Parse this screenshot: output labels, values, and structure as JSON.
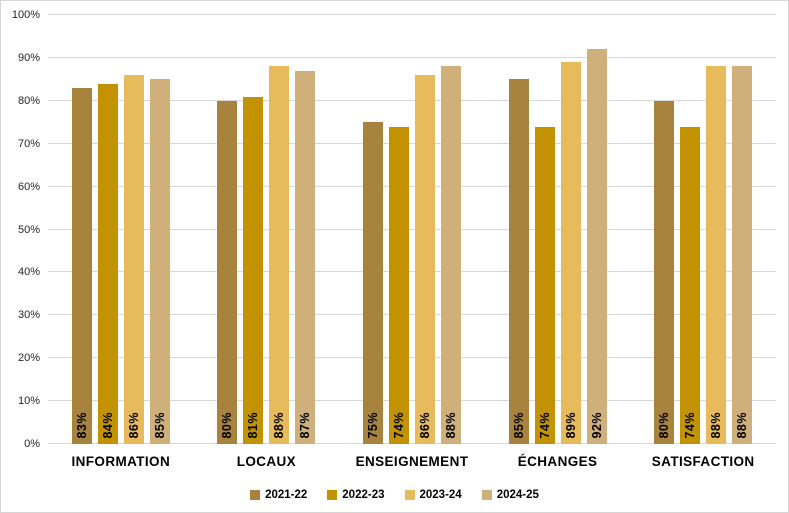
{
  "chart_data": {
    "type": "bar",
    "title": "",
    "xlabel": "",
    "ylabel": "",
    "ylim": [
      0,
      100
    ],
    "grid": true,
    "legend_position": "bottom",
    "y_ticks": [
      "0%",
      "10%",
      "20%",
      "30%",
      "40%",
      "50%",
      "60%",
      "70%",
      "80%",
      "90%",
      "100%"
    ],
    "y_tick_values": [
      0,
      10,
      20,
      30,
      40,
      50,
      60,
      70,
      80,
      90,
      100
    ],
    "categories": [
      "INFORMATION",
      "LOCAUX",
      "ENSEIGNEMENT",
      "ÉCHANGES",
      "SATISFACTION"
    ],
    "series": [
      {
        "name": "2021-22",
        "color": "#A8833E",
        "values": [
          83,
          80,
          75,
          85,
          80
        ]
      },
      {
        "name": "2022-23",
        "color": "#C29200",
        "values": [
          84,
          81,
          74,
          74,
          74
        ]
      },
      {
        "name": "2023-24",
        "color": "#E7BB5C",
        "values": [
          86,
          88,
          86,
          89,
          88
        ]
      },
      {
        "name": "2024-25",
        "color": "#D0B07A",
        "values": [
          85,
          87,
          88,
          92,
          88
        ]
      }
    ],
    "data_label_suffix": "%",
    "colors": {
      "gridline": "#D9D9D9",
      "frame_border": "#D6D6D6",
      "tick_text": "#262626",
      "label_text": "#000000",
      "background": "#FFFFFF"
    }
  }
}
